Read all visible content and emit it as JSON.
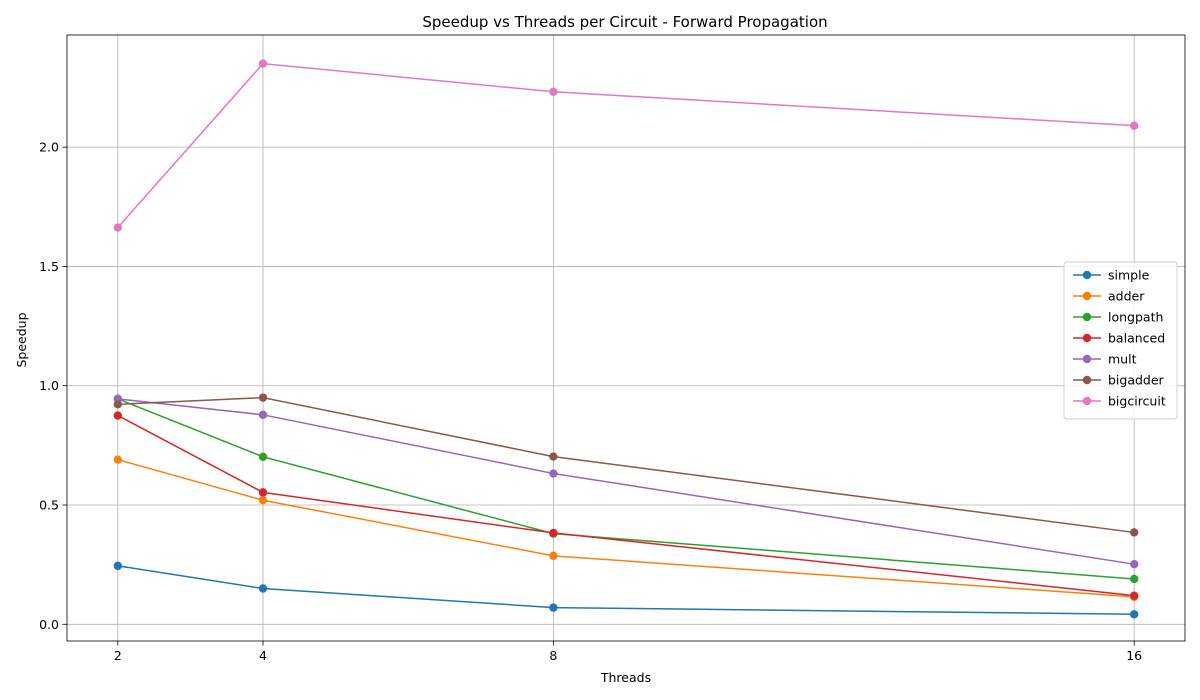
{
  "chart_data": {
    "type": "line",
    "title": "Speedup vs Threads per Circuit - Forward Propagation",
    "xlabel": "Threads",
    "ylabel": "Speedup",
    "x": [
      2,
      4,
      8,
      16
    ],
    "x_ticks": [
      2,
      4,
      8,
      16
    ],
    "x_tick_labels": [
      "2",
      "4",
      "8",
      "16"
    ],
    "xlim": [
      1.3,
      16.7
    ],
    "ylim": [
      -0.07,
      2.47
    ],
    "y_ticks": [
      0.0,
      0.5,
      1.0,
      1.5,
      2.0
    ],
    "y_tick_labels": [
      "0.0",
      "0.5",
      "1.0",
      "1.5",
      "2.0"
    ],
    "grid": true,
    "legend_position": "center-right",
    "series": [
      {
        "name": "simple",
        "color": "#1f77b4",
        "values": [
          0.245,
          0.15,
          0.07,
          0.042
        ]
      },
      {
        "name": "adder",
        "color": "#ff7f0e",
        "values": [
          0.69,
          0.52,
          0.287,
          0.115
        ]
      },
      {
        "name": "longpath",
        "color": "#2ca02c",
        "values": [
          0.945,
          0.702,
          0.38,
          0.19
        ]
      },
      {
        "name": "balanced",
        "color": "#d62728",
        "values": [
          0.875,
          0.553,
          0.383,
          0.12
        ]
      },
      {
        "name": "mult",
        "color": "#9467bd",
        "values": [
          0.945,
          0.878,
          0.632,
          0.252
        ]
      },
      {
        "name": "bigadder",
        "color": "#8c564b",
        "values": [
          0.922,
          0.95,
          0.703,
          0.385
        ]
      },
      {
        "name": "bigcircuit",
        "color": "#e377c2",
        "values": [
          1.663,
          2.35,
          2.232,
          2.09
        ]
      }
    ]
  }
}
